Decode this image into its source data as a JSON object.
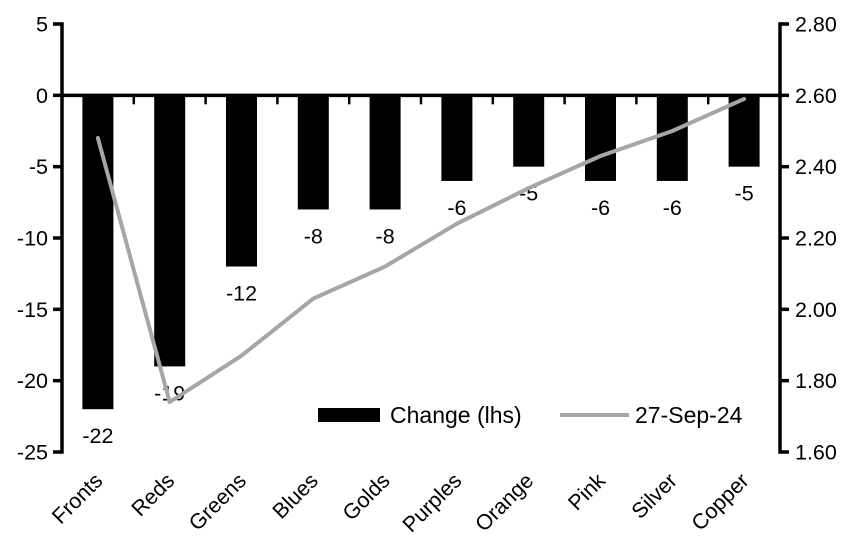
{
  "colors": {
    "background": "#ffffff",
    "bar": "#000000",
    "line": "#a6a6a6",
    "axis": "#000000",
    "text": "#000000"
  },
  "chart_data": {
    "type": "bar",
    "title": "",
    "xlabel": "",
    "ylabel": "",
    "grid": false,
    "legend_position": "inside-bottom",
    "categories": [
      "Fronts",
      "Reds",
      "Greens",
      "Blues",
      "Golds",
      "Purples",
      "Orange",
      "Pink",
      "Silver",
      "Copper"
    ],
    "series": [
      {
        "name": "Change (lhs)",
        "render": "bar",
        "axis": "left",
        "color": "#000000",
        "values": [
          -22,
          -19,
          -12,
          -8,
          -8,
          -6,
          -5,
          -6,
          -6,
          -5
        ]
      },
      {
        "name": "27-Sep-24",
        "render": "line",
        "axis": "right",
        "color": "#a6a6a6",
        "values": [
          2.48,
          1.74,
          1.87,
          2.03,
          2.12,
          2.24,
          2.34,
          2.43,
          2.5,
          2.59
        ]
      }
    ],
    "bar_labels": [
      "-22",
      "-19",
      "-12",
      "-8",
      "-8",
      "-6",
      "-5",
      "-6",
      "-6",
      "-5"
    ],
    "left_axis": {
      "min": -25,
      "max": 5,
      "ticks": [
        5,
        0,
        -5,
        -10,
        -15,
        -20,
        -25
      ],
      "tick_labels": [
        "5",
        "0",
        "-5",
        "-10",
        "-15",
        "-20",
        "-25"
      ]
    },
    "right_axis": {
      "min": 1.6,
      "max": 2.8,
      "ticks": [
        2.8,
        2.6,
        2.4,
        2.2,
        2.0,
        1.8,
        1.6
      ],
      "tick_labels": [
        "2.80",
        "2.60",
        "2.40",
        "2.20",
        "2.00",
        "1.80",
        "1.60"
      ]
    },
    "legend": {
      "items": [
        {
          "label": "Change (lhs)",
          "swatch": "bar",
          "color": "#000000"
        },
        {
          "label": "27-Sep-24",
          "swatch": "line",
          "color": "#a6a6a6"
        }
      ]
    }
  }
}
